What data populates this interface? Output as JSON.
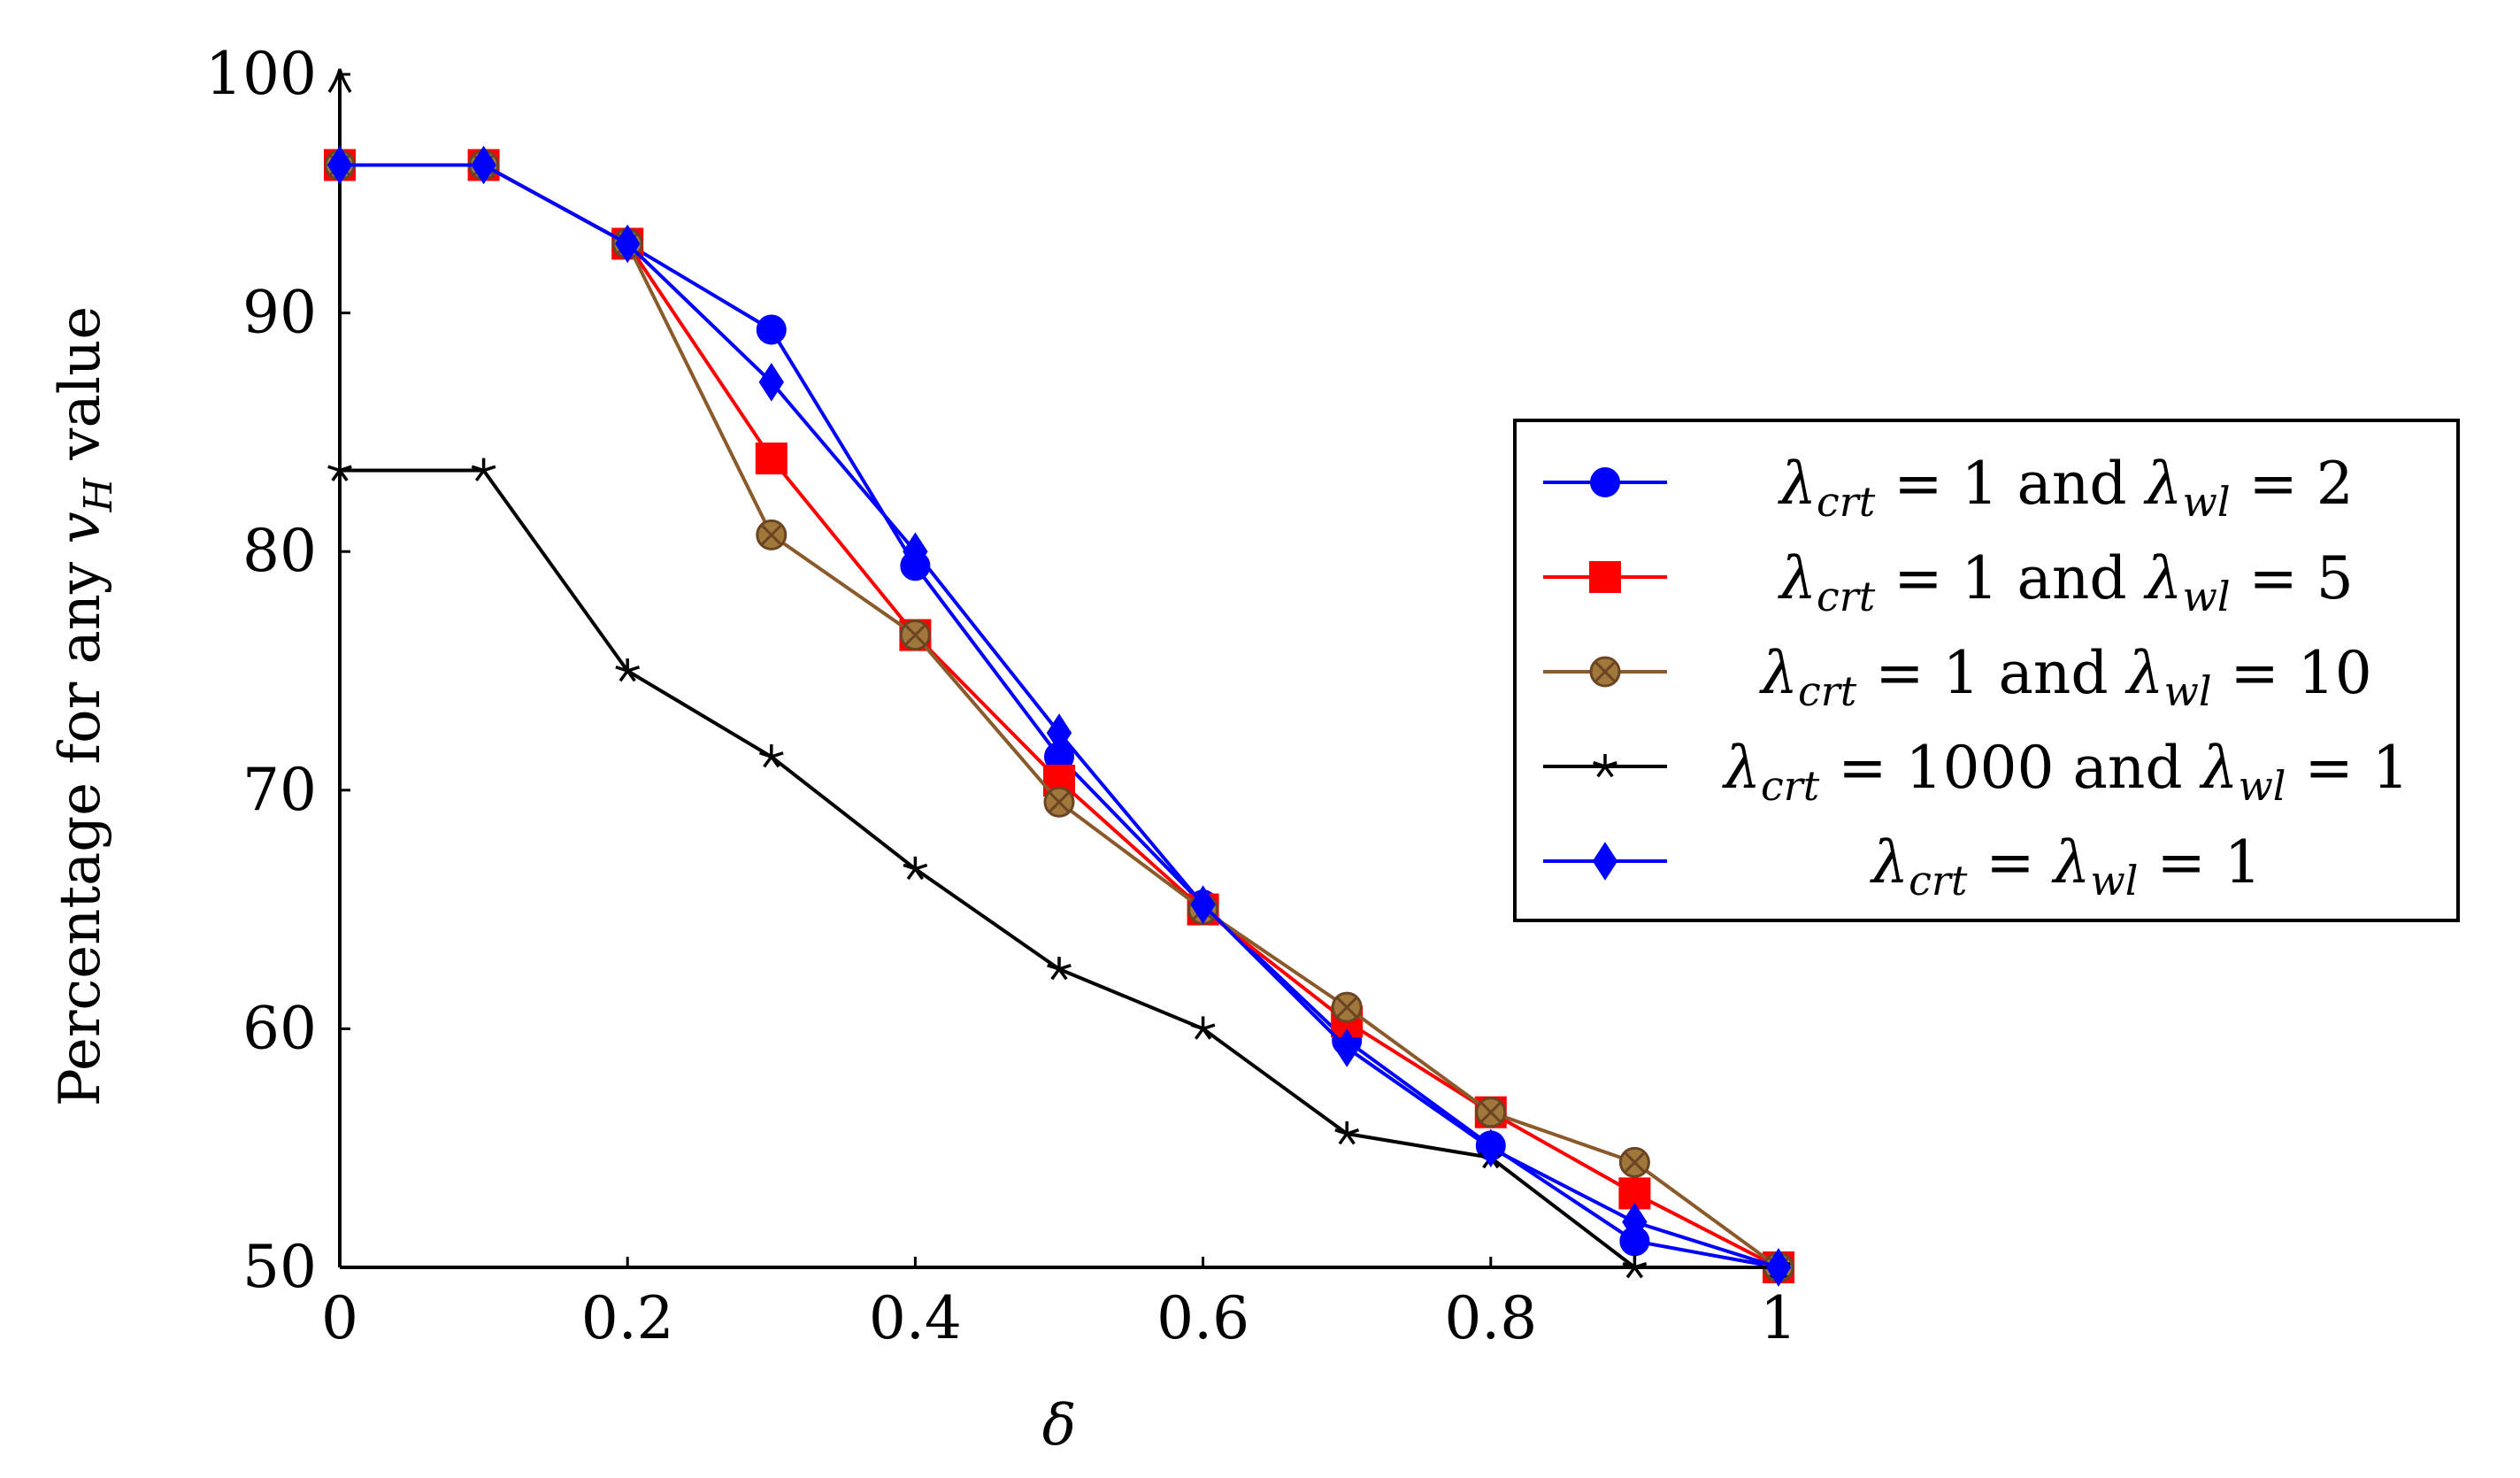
{
  "chart_data": {
    "type": "line",
    "title": "",
    "xlabel": "δ",
    "ylabel_prefix": "Percentage for any ",
    "ylabel_var": "v",
    "ylabel_sub": "H",
    "ylabel_suffix": " value",
    "xlim": [
      0,
      1
    ],
    "ylim": [
      50,
      100
    ],
    "x_ticks": [
      0,
      0.2,
      0.4,
      0.6,
      0.8,
      1
    ],
    "x_tick_labels": [
      "0",
      "0.2",
      "0.4",
      "0.6",
      "0.8",
      "1"
    ],
    "y_ticks": [
      50,
      60,
      70,
      80,
      90,
      100
    ],
    "y_tick_labels": [
      "50",
      "60",
      "70",
      "80",
      "90",
      "100"
    ],
    "grid": false,
    "legend_position": "right",
    "series": [
      {
        "name": "λcrt = 1 and λwl = 2",
        "label_parts": [
          {
            "t": "λ",
            "m": true
          },
          {
            "t": "crt",
            "sub": true
          },
          {
            "t": " = 1 and "
          },
          {
            "t": "λ",
            "m": true
          },
          {
            "t": "wl",
            "sub": true
          },
          {
            "t": " = 2"
          }
        ],
        "color": "#0000ff",
        "marker": "circle",
        "x": [
          0,
          0.1,
          0.2,
          0.3,
          0.4,
          0.5,
          0.6,
          0.7,
          0.8,
          0.9,
          1
        ],
        "y": [
          96.2,
          96.2,
          92.9,
          89.3,
          79.4,
          71.4,
          65.2,
          59.5,
          55.1,
          51.1,
          50
        ]
      },
      {
        "name": "λcrt = 1 and λwl = 5",
        "label_parts": [
          {
            "t": "λ",
            "m": true
          },
          {
            "t": "crt",
            "sub": true
          },
          {
            "t": " = 1 and "
          },
          {
            "t": "λ",
            "m": true
          },
          {
            "t": "wl",
            "sub": true
          },
          {
            "t": " = 5"
          }
        ],
        "color": "#ff0000",
        "marker": "square",
        "x": [
          0,
          0.1,
          0.2,
          0.3,
          0.4,
          0.5,
          0.6,
          0.7,
          0.8,
          0.9,
          1
        ],
        "y": [
          96.2,
          96.2,
          92.9,
          83.9,
          76.5,
          70.4,
          65.0,
          60.3,
          56.5,
          53.1,
          50
        ]
      },
      {
        "name": "λcrt = 1 and λwl = 10",
        "label_parts": [
          {
            "t": "λ",
            "m": true
          },
          {
            "t": "crt",
            "sub": true
          },
          {
            "t": " = 1 and "
          },
          {
            "t": "λ",
            "m": true
          },
          {
            "t": "wl",
            "sub": true
          },
          {
            "t": " = 10"
          }
        ],
        "color": "#8b5a2b",
        "marker": "otimes",
        "x": [
          0,
          0.1,
          0.2,
          0.3,
          0.4,
          0.5,
          0.6,
          0.7,
          0.8,
          0.9,
          1
        ],
        "y": [
          96.2,
          96.2,
          92.9,
          80.7,
          76.5,
          69.5,
          65.0,
          60.9,
          56.5,
          54.4,
          50
        ]
      },
      {
        "name": "λcrt = 1000 and λwl = 1",
        "label_parts": [
          {
            "t": "λ",
            "m": true
          },
          {
            "t": "crt",
            "sub": true
          },
          {
            "t": " = 1000 and "
          },
          {
            "t": "λ",
            "m": true
          },
          {
            "t": "wl",
            "sub": true
          },
          {
            "t": " = 1"
          }
        ],
        "color": "#000000",
        "marker": "star",
        "x": [
          0,
          0.1,
          0.2,
          0.3,
          0.4,
          0.5,
          0.6,
          0.7,
          0.8,
          0.9,
          1
        ],
        "y": [
          83.4,
          83.4,
          75.0,
          71.4,
          66.7,
          62.5,
          60.0,
          55.6,
          54.6,
          50.0,
          50
        ]
      },
      {
        "name": "λcrt = λwl = 1",
        "label_parts": [
          {
            "t": "λ",
            "m": true
          },
          {
            "t": "crt",
            "sub": true
          },
          {
            "t": " = "
          },
          {
            "t": "λ",
            "m": true
          },
          {
            "t": "wl",
            "sub": true
          },
          {
            "t": " = 1"
          }
        ],
        "color": "#0000ff",
        "marker": "diamond",
        "x": [
          0,
          0.1,
          0.2,
          0.3,
          0.4,
          0.5,
          0.6,
          0.7,
          0.8,
          0.9,
          1
        ],
        "y": [
          96.2,
          96.2,
          92.9,
          87.1,
          80.0,
          72.4,
          65.2,
          59.2,
          55.0,
          51.9,
          50
        ]
      }
    ]
  }
}
